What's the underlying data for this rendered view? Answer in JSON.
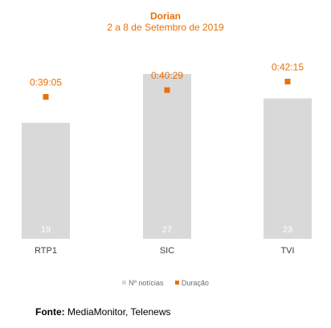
{
  "chart_data": {
    "type": "bar",
    "title": "Dorian",
    "subtitle": "2 a 8 de Setembro de 2019",
    "categories": [
      "RTP1",
      "SIC",
      "TVI"
    ],
    "series": [
      {
        "name": "Nº notícias",
        "type": "bar",
        "values": [
          19,
          27,
          23
        ],
        "color": "#d9d9d9"
      },
      {
        "name": "Duração",
        "type": "marker",
        "values": [
          "0:39:05",
          "0:40:29",
          "0:42:15"
        ],
        "color": "#E8710A"
      }
    ],
    "legend_position": "bottom",
    "grid": false,
    "source_label": "Fonte:",
    "source_text": " MediaMonitor, Telenews"
  }
}
